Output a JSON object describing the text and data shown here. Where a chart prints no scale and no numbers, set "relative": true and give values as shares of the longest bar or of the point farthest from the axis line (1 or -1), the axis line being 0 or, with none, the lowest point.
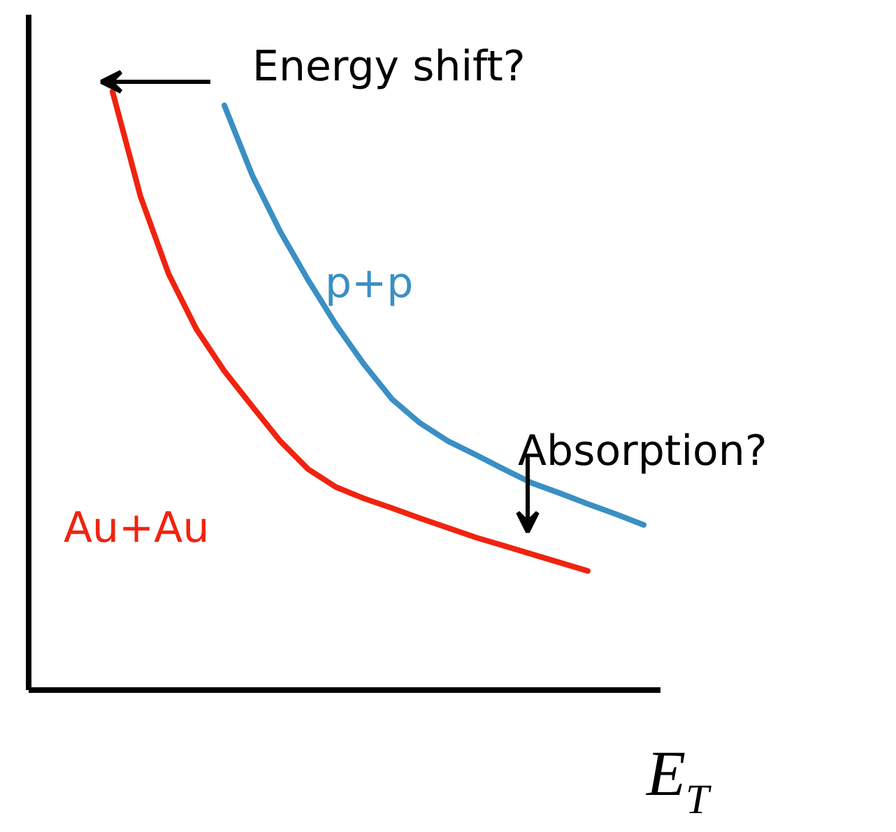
{
  "chart_data": {
    "type": "line",
    "relative": true,
    "xlabel": "E$_{T}$",
    "grid": false,
    "categories": [
      null,
      null,
      null,
      null,
      null,
      null,
      null,
      null,
      null,
      null,
      null,
      null,
      null,
      null,
      null,
      null,
      null,
      null,
      null,
      null,
      null
    ],
    "series": [
      {
        "name": "p+p",
        "color": "#3a8fc4",
        "values": [
          null,
          null,
          null,
          null,
          null,
          0.977,
          0.86,
          0.766,
          0.685,
          0.61,
          0.544,
          0.486,
          0.446,
          0.416,
          0.393,
          0.369,
          0.346,
          0.329,
          0.311,
          0.294,
          0.276
        ]
      },
      {
        "name": "Au+Au",
        "color": "#f0230f",
        "values": [
          null,
          1.0,
          0.825,
          0.696,
          0.603,
          0.533,
          0.474,
          0.416,
          0.369,
          0.339,
          0.32,
          0.304,
          0.287,
          0.271,
          0.255,
          0.241,
          0.227,
          0.213,
          0.199,
          null,
          null
        ]
      }
    ],
    "annotations": [
      "Energy shift?",
      "Absorption?"
    ]
  }
}
